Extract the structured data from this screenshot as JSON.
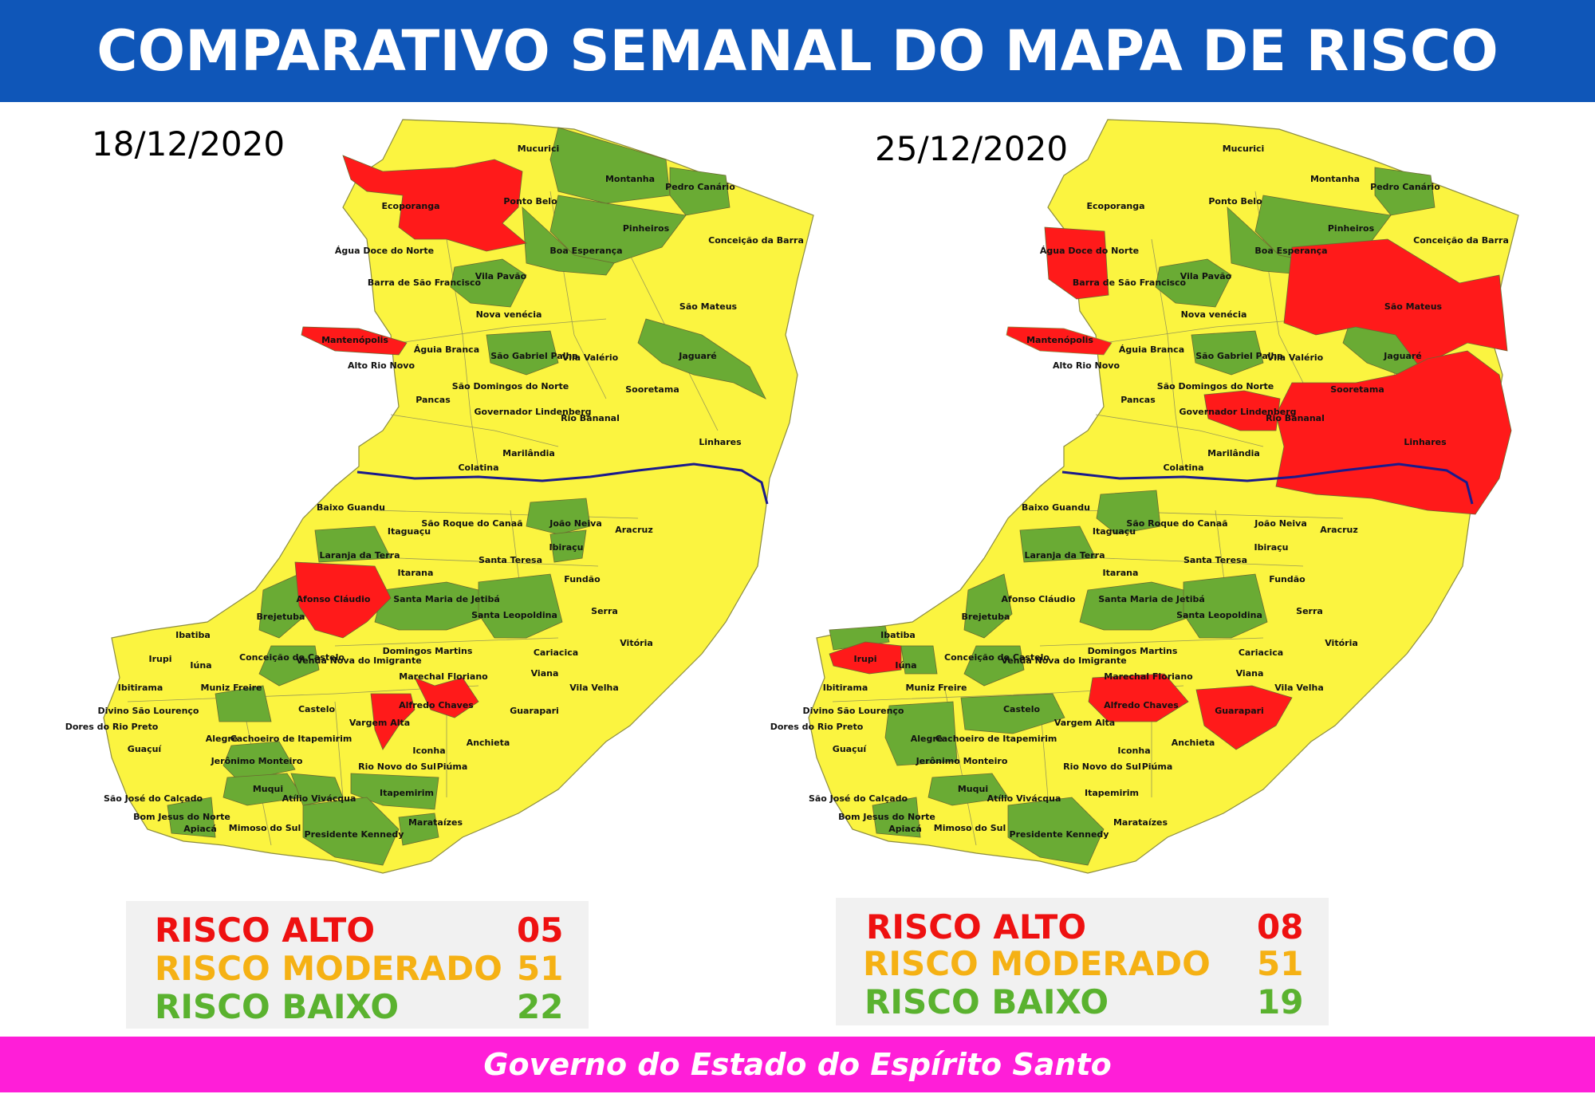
{
  "header": {
    "title": "COMPARATIVO SEMANAL DO MAPA DE RISCO"
  },
  "colors": {
    "header_bg": "#0f56b8",
    "footer_bg": "#ff1ed8",
    "risco_alto": "#ff1a1a",
    "risco_moderado": "#fbf440",
    "risco_baixo": "#6aab34",
    "river": "#1a1a8c",
    "legend_bg": "#f1f1f1",
    "legend_alto_text": "#ee1111",
    "legend_moderado_text": "#f5b114",
    "legend_baixo_text": "#5ab22f"
  },
  "maps": [
    {
      "date": "18/12/2020",
      "legend": {
        "alto_label": "RISCO ALTO",
        "alto_value": "05",
        "moderado_label": "RISCO MODERADO",
        "moderado_value": "51",
        "baixo_label": "RISCO BAIXO",
        "baixo_value": "22"
      },
      "municipalities_high": [
        "Ecoporanga",
        "Mantenópolis",
        "Afonso Cláudio",
        "Alfredo Chaves",
        "Vargem Alta"
      ],
      "municipalities_low": [
        "Montanha",
        "Pedro Canário",
        "Pinheiros",
        "Boa Esperança",
        "Vila Pavão",
        "São Gabriel Palha",
        "Jaguaré",
        "João Neiva",
        "Laranja da Terra",
        "Santa Maria de Jetibá",
        "Santa Leopoldina",
        "Brejetuba",
        "Conceição do Castelo",
        "Jerônimo Monteiro",
        "Muqui",
        "Atílio Vivácqua",
        "Itapemirim",
        "Presidente Kennedy",
        "Apiacá",
        "Marataízes",
        "Ibiraçu",
        "Muniz Freire"
      ]
    },
    {
      "date": "25/12/2020",
      "legend": {
        "alto_label": "RISCO ALTO",
        "alto_value": "08",
        "moderado_label": "RISCO MODERADO",
        "moderado_value": "51",
        "baixo_label": "RISCO BAIXO",
        "baixo_value": "19"
      },
      "municipalities_high": [
        "Água Doce do Norte",
        "Mantenópolis",
        "São Mateus",
        "Linhares",
        "Governador Lindenberg",
        "Irupi",
        "Alfredo Chaves",
        "Guarapari"
      ],
      "municipalities_low": [
        "Pedro Canário",
        "Pinheiros",
        "Boa Esperança",
        "Vila Pavão",
        "São Gabriel Palha",
        "Jaguaré",
        "Itaguaçu",
        "Laranja da Terra",
        "Santa Maria de Jetibá",
        "Santa Leopoldina",
        "Brejetuba",
        "Conceição do Castelo",
        "Castelo",
        "Alegre",
        "Muqui",
        "Presidente Kennedy",
        "Apiacá",
        "Ibatiba",
        "Iúna"
      ]
    }
  ],
  "labels": {
    "Mucurici": "Mucurici",
    "Montanha": "Montanha",
    "PedroCanario": "Pedro Canário",
    "Ecoporanga": "Ecoporanga",
    "PontoBelo": "Ponto Belo",
    "Pinheiros": "Pinheiros",
    "ConceicaoBarra": "Conceição da Barra",
    "BoaEsperanca": "Boa Esperança",
    "AguaDoce": "Água Doce do Norte",
    "VilaPavao": "Vila Pavão",
    "BarraSF": "Barra de São Francisco",
    "SaoMateus": "São Mateus",
    "NovaVenecia": "Nova venécia",
    "Mantenopolis": "Mantenópolis",
    "AguiaBranca": "Águia Branca",
    "SaoGabriel": "São Gabriel Palha",
    "VilaValerio": "Vila Valério",
    "Jaguare": "Jaguaré",
    "AltoRioNovo": "Alto Rio Novo",
    "SaoDomingos": "São Domingos do Norte",
    "Sooretama": "Sooretama",
    "Pancas": "Pancas",
    "Governador": "Governador Lindenberg",
    "RioBananal": "Rio Bananal",
    "Linhares": "Linhares",
    "Marilandia": "Marilândia",
    "Colatina": "Colatina",
    "BaixoGuandu": "Baixo Guandu",
    "Itaguacu": "Itaguaçu",
    "SaoRoque": "São Roque do Canaã",
    "JoaoNeiva": "João Neiva",
    "Aracruz": "Aracruz",
    "LaranjaTerra": "Laranja da Terra",
    "Ibiracu": "Ibiraçu",
    "SantaTeresa": "Santa Teresa",
    "Itarana": "Itarana",
    "Fundao": "Fundão",
    "AfonsoClaudio": "Afonso Cláudio",
    "SantaMaria": "Santa Maria de Jetibá",
    "SantaLeopoldina": "Santa Leopoldina",
    "Serra": "Serra",
    "Brejetuba": "Brejetuba",
    "Ibatiba": "Ibatiba",
    "Vitoria": "Vitória",
    "DomingosMartins": "Domingos Martins",
    "Cariacica": "Cariacica",
    "Irupi": "Irupi",
    "Iuna": "Iúna",
    "ConceicaoCastelo": "Conceição do Castelo",
    "VendaNova": "Venda Nova do Imigrante",
    "Viana": "Viana",
    "Ibitirama": "Ibitirama",
    "MunizFreire": "Muniz Freire",
    "MarechalFloriano": "Marechal Floriano",
    "VilaVelha": "Vila Velha",
    "DivinoSL": "Divino São Lourenço",
    "Castelo": "Castelo",
    "AlfredoChaves": "Alfredo Chaves",
    "Guarapari": "Guarapari",
    "Dores": "Dores do Rio Preto",
    "Alegre": "Alegre",
    "Cachoeiro": "Cachoeiro de Itapemirim",
    "VargemAlta": "Vargem Alta",
    "Guacui": "Guaçuí",
    "Jeronimo": "Jerônimo Monteiro",
    "Anchieta": "Anchieta",
    "Iconha": "Iconha",
    "RioNovo": "Rio Novo do Sul",
    "Piuma": "Piúma",
    "SaoJose": "São José do Calçado",
    "Muqui": "Muqui",
    "Atilio": "Atílio Vivácqua",
    "Itapemirim": "Itapemirim",
    "BomJesus": "Bom Jesus do Norte",
    "Apiaca": "Apiacá",
    "Mimoso": "Mimoso do Sul",
    "Marataizes": "Marataízes",
    "PresidenteKennedy": "Presidente Kennedy"
  },
  "footer": {
    "text": "Governo do Estado do Espírito Santo"
  }
}
